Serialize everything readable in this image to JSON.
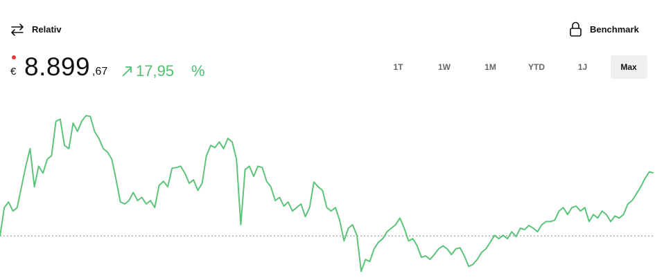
{
  "header": {
    "toggle": "Relativ",
    "benchmark": "Benchmark"
  },
  "price": {
    "currency": "€",
    "integer": "8.899",
    "decimals": ",67",
    "change": "17,95",
    "change_unit": "%"
  },
  "tabs": [
    "1T",
    "1W",
    "1M",
    "YTD",
    "1J",
    "Max"
  ],
  "chart_data": {
    "type": "line",
    "color": "#5cc47a",
    "ylim": [
      -11.6,
      37.7
    ],
    "values": [
      0,
      8.1,
      9.7,
      7.1,
      8.1,
      14.0,
      19.9,
      24.9,
      14.0,
      19.9,
      17.9,
      21.9,
      22.9,
      32.7,
      33.3,
      25.8,
      24.9,
      32.2,
      29.8,
      32.7,
      34.3,
      34.1,
      29.8,
      27.8,
      24.9,
      23.9,
      21.9,
      16.0,
      9.7,
      9.1,
      10.1,
      12.4,
      10.1,
      11.0,
      9.1,
      10.1,
      8.1,
      14.4,
      15.6,
      14.0,
      19.3,
      19.5,
      19.9,
      17.9,
      15.0,
      16.0,
      13.0,
      15.0,
      22.9,
      25.8,
      25.2,
      26.8,
      24.9,
      27.8,
      26.8,
      21.9,
      3.2,
      18.9,
      19.9,
      17.0,
      19.9,
      19.5,
      15.6,
      14.0,
      10.1,
      11.0,
      8.5,
      9.7,
      7.1,
      8.1,
      9.1,
      5.5,
      8.1,
      15.4,
      14.0,
      13.0,
      8.1,
      7.1,
      8.1,
      4.5,
      -1.4,
      2.2,
      3.2,
      0.2,
      -10.1,
      -6.7,
      -7.3,
      -3.7,
      -1.8,
      -0.8,
      1.2,
      2.2,
      3.2,
      5.1,
      2.2,
      -1.4,
      -0.8,
      -2.8,
      -6.1,
      -5.7,
      -6.7,
      -5.3,
      -3.7,
      -2.8,
      -3.7,
      -5.3,
      -3.7,
      -3.4,
      -5.7,
      -8.7,
      -8.1,
      -6.7,
      -4.7,
      -3.7,
      -1.8,
      0.2,
      -0.8,
      0.2,
      -0.8,
      1.2,
      -0.2,
      2.2,
      1.8,
      3.0,
      2.2,
      1.2,
      3.2,
      4.1,
      4.1,
      4.5,
      7.1,
      8.1,
      6.1,
      8.1,
      8.5,
      7.1,
      8.1,
      4.1,
      6.1,
      5.1,
      7.1,
      6.1,
      4.1,
      5.7,
      5.1,
      6.1,
      9.1,
      10.1,
      12.0,
      14.0,
      16.4,
      18.3,
      17.95
    ]
  }
}
